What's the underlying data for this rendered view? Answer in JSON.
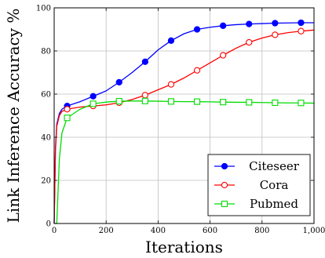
{
  "chart_data": {
    "type": "line",
    "title": "",
    "xlabel": "Iterations",
    "ylabel": "Link Inference Accuracy %",
    "xlim": [
      0,
      1000
    ],
    "ylim": [
      0,
      100
    ],
    "xticks": [
      0,
      200,
      400,
      600,
      800,
      1000
    ],
    "xtick_labels": [
      "0",
      "200",
      "400",
      "600",
      "800",
      "1,000"
    ],
    "yticks": [
      0,
      20,
      40,
      60,
      80,
      100
    ],
    "ytick_labels": [
      "0",
      "20",
      "40",
      "60",
      "80",
      "100"
    ],
    "grid": true,
    "legend_position": "bottom-right",
    "series": [
      {
        "name": "Citeseer",
        "color": "#0000ff",
        "marker": "filled-circle",
        "points": [
          [
            0,
            0
          ],
          [
            5,
            35
          ],
          [
            10,
            46
          ],
          [
            20,
            51
          ],
          [
            30,
            53
          ],
          [
            50,
            54.5
          ],
          [
            100,
            56.5
          ],
          [
            150,
            59
          ],
          [
            200,
            61.5
          ],
          [
            250,
            65.5
          ],
          [
            300,
            70
          ],
          [
            350,
            75
          ],
          [
            400,
            80.5
          ],
          [
            450,
            84.8
          ],
          [
            500,
            88
          ],
          [
            550,
            90
          ],
          [
            600,
            91
          ],
          [
            650,
            91.7
          ],
          [
            700,
            92.2
          ],
          [
            750,
            92.5
          ],
          [
            800,
            92.7
          ],
          [
            850,
            92.9
          ],
          [
            900,
            93
          ],
          [
            950,
            93.1
          ],
          [
            1000,
            93.1
          ]
        ],
        "marker_x": [
          50,
          150,
          250,
          350,
          450,
          550,
          650,
          750,
          850,
          950
        ]
      },
      {
        "name": "Cora",
        "color": "#ff0000",
        "marker": "open-circle",
        "points": [
          [
            0,
            0
          ],
          [
            5,
            34
          ],
          [
            10,
            45
          ],
          [
            20,
            50
          ],
          [
            30,
            52
          ],
          [
            50,
            53
          ],
          [
            100,
            54
          ],
          [
            150,
            54.5
          ],
          [
            200,
            55
          ],
          [
            250,
            56
          ],
          [
            300,
            57.5
          ],
          [
            350,
            59.5
          ],
          [
            400,
            62
          ],
          [
            450,
            64.5
          ],
          [
            500,
            67.5
          ],
          [
            550,
            71
          ],
          [
            600,
            74.5
          ],
          [
            650,
            78
          ],
          [
            700,
            81.3
          ],
          [
            750,
            84
          ],
          [
            800,
            86
          ],
          [
            850,
            87.5
          ],
          [
            900,
            88.5
          ],
          [
            950,
            89.2
          ],
          [
            1000,
            89.7
          ]
        ],
        "marker_x": [
          50,
          150,
          250,
          350,
          450,
          550,
          650,
          750,
          850,
          950
        ]
      },
      {
        "name": "Pubmed",
        "color": "#00dd00",
        "marker": "open-square",
        "points": [
          [
            0,
            0
          ],
          [
            10,
            0
          ],
          [
            20,
            30
          ],
          [
            30,
            42
          ],
          [
            50,
            49
          ],
          [
            100,
            53
          ],
          [
            150,
            55.5
          ],
          [
            200,
            56.3
          ],
          [
            250,
            56.7
          ],
          [
            300,
            56.8
          ],
          [
            350,
            56.8
          ],
          [
            400,
            56.7
          ],
          [
            450,
            56.6
          ],
          [
            500,
            56.5
          ],
          [
            550,
            56.5
          ],
          [
            600,
            56.4
          ],
          [
            650,
            56.3
          ],
          [
            700,
            56.2
          ],
          [
            750,
            56.2
          ],
          [
            800,
            56.1
          ],
          [
            850,
            56
          ],
          [
            900,
            55.9
          ],
          [
            950,
            55.9
          ],
          [
            1000,
            55.8
          ]
        ],
        "marker_x": [
          50,
          150,
          250,
          350,
          450,
          550,
          650,
          750,
          850,
          950
        ]
      }
    ]
  }
}
